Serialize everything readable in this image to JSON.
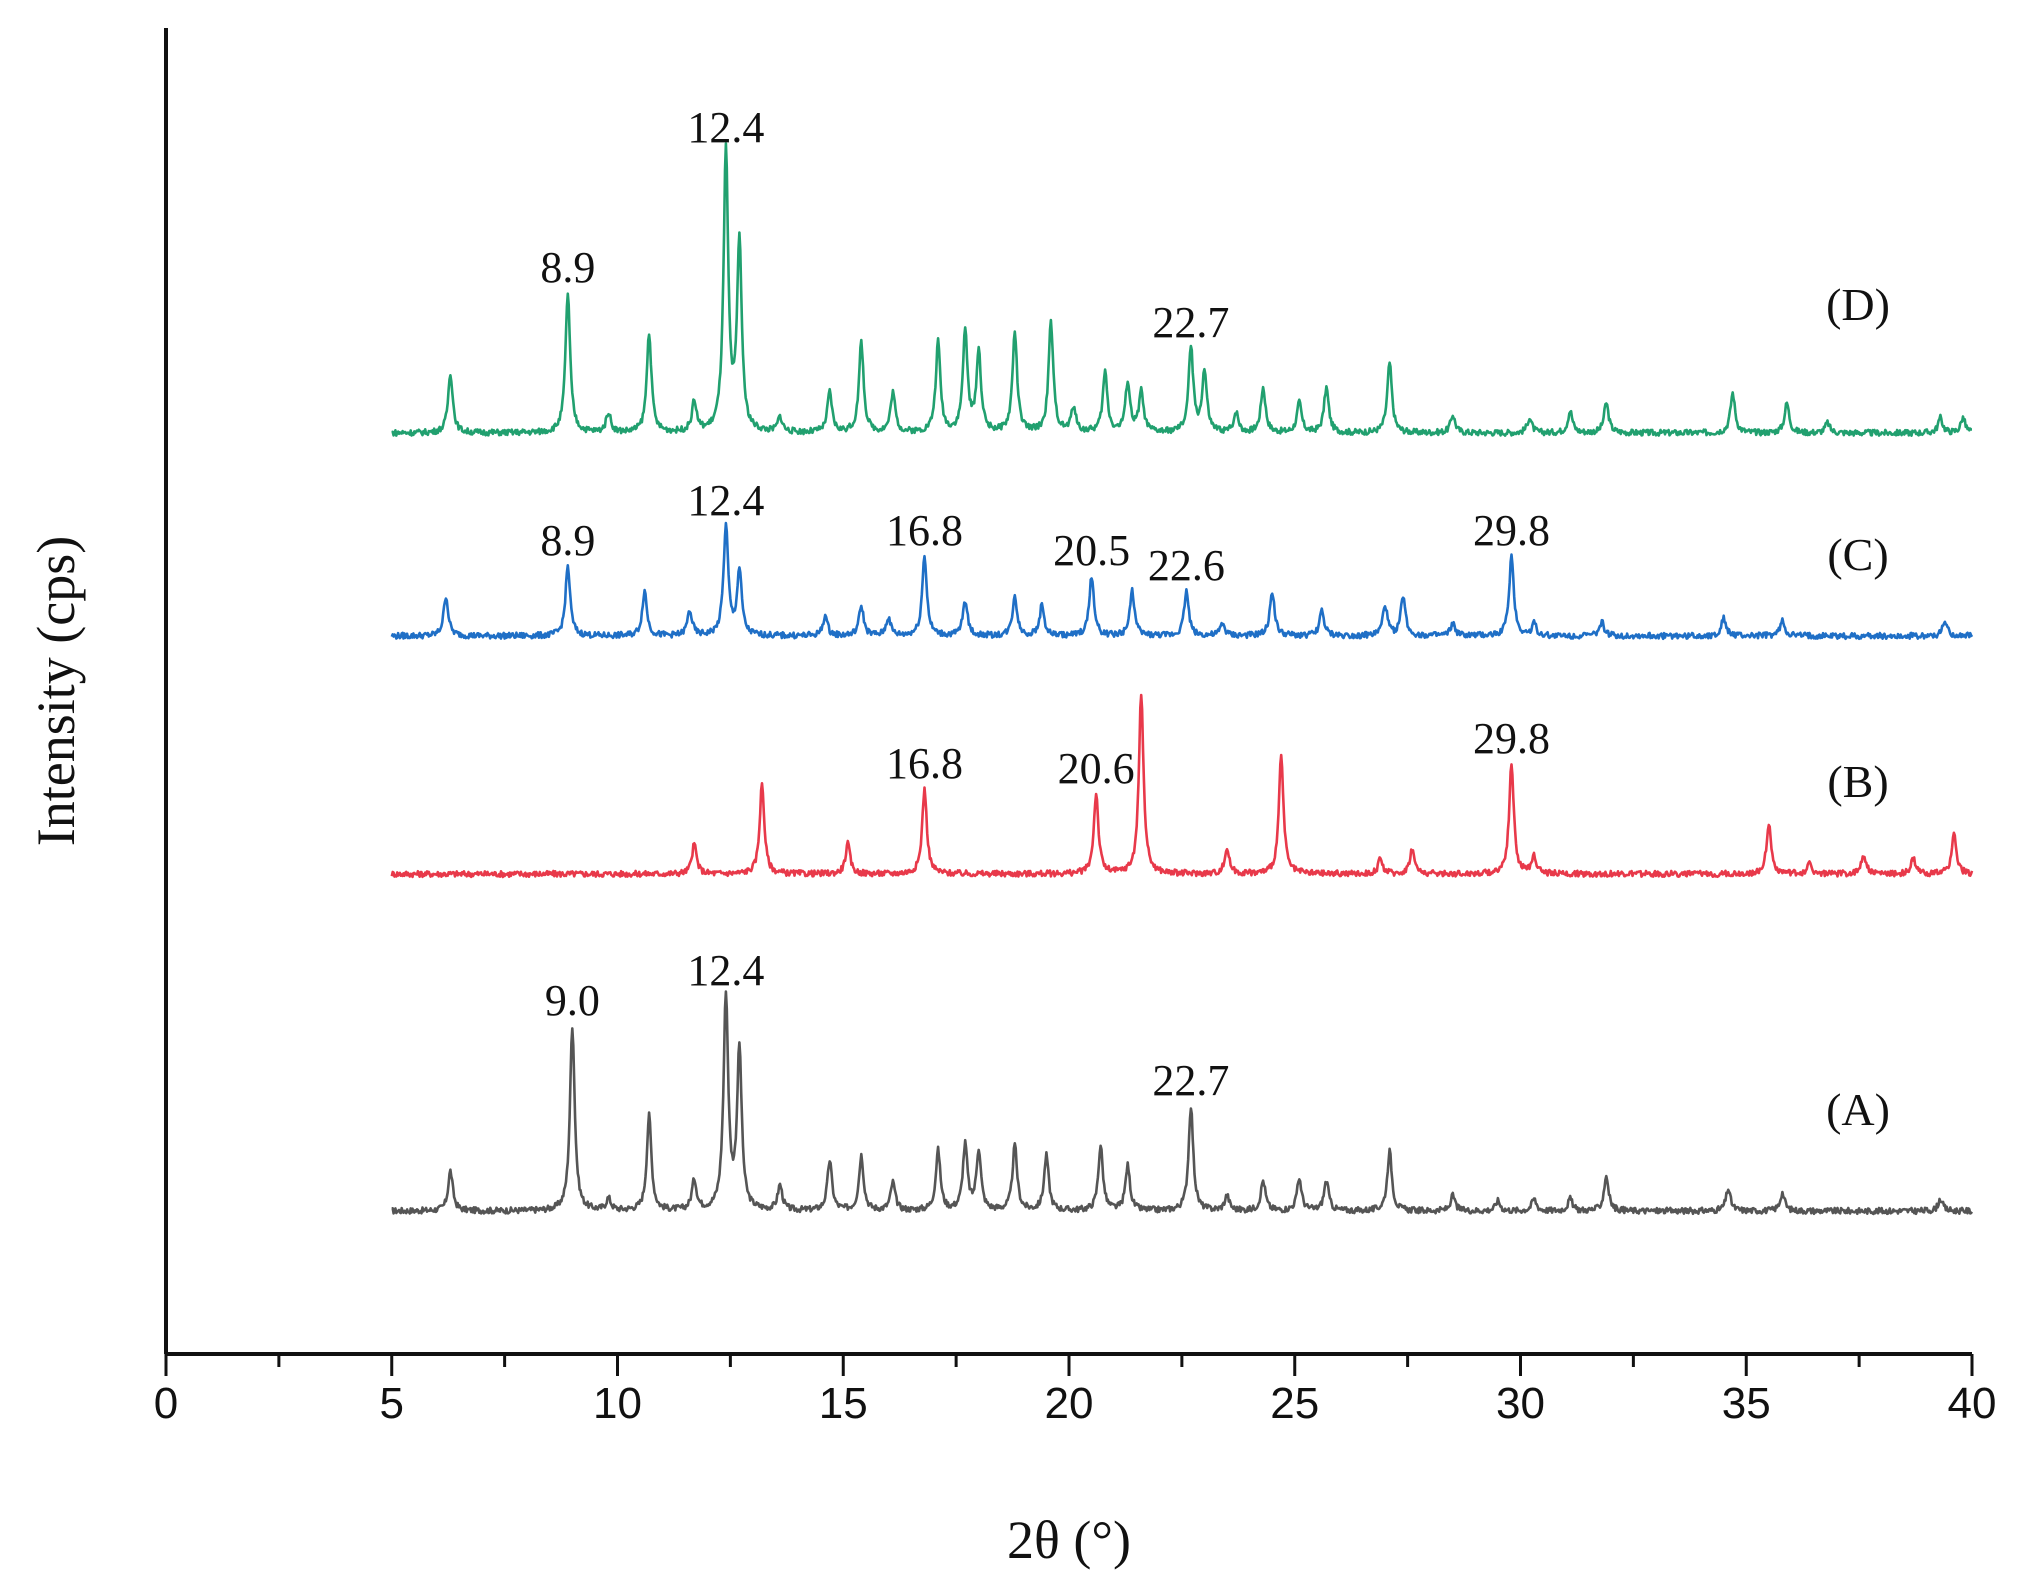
{
  "chart_data": {
    "type": "line",
    "xlabel": "2θ (°)",
    "ylabel": "Intensity (cps)",
    "xlim": [
      0,
      40
    ],
    "x_ticks": [
      "0",
      "5",
      "10",
      "15",
      "20",
      "25",
      "30",
      "35",
      "40"
    ],
    "grid": false,
    "legend": "none (series labels placed at right of each trace)",
    "colors": {
      "A": "#555555",
      "B": "#e8394a",
      "C": "#1f6fc6",
      "D": "#21a06f"
    },
    "series": [
      {
        "name": "(A)",
        "color": "#555555",
        "peaks": [
          {
            "x": 6.3,
            "h": 40
          },
          {
            "x": 9.0,
            "h": 185
          },
          {
            "x": 9.8,
            "h": 12
          },
          {
            "x": 10.7,
            "h": 95
          },
          {
            "x": 11.7,
            "h": 30
          },
          {
            "x": 12.4,
            "h": 215
          },
          {
            "x": 12.7,
            "h": 160
          },
          {
            "x": 13.6,
            "h": 25
          },
          {
            "x": 14.7,
            "h": 50
          },
          {
            "x": 15.4,
            "h": 55
          },
          {
            "x": 16.1,
            "h": 28
          },
          {
            "x": 17.1,
            "h": 60
          },
          {
            "x": 17.7,
            "h": 65
          },
          {
            "x": 18.0,
            "h": 60
          },
          {
            "x": 18.8,
            "h": 65
          },
          {
            "x": 19.5,
            "h": 55
          },
          {
            "x": 20.7,
            "h": 65
          },
          {
            "x": 21.3,
            "h": 45
          },
          {
            "x": 22.7,
            "h": 105
          },
          {
            "x": 23.5,
            "h": 15
          },
          {
            "x": 24.3,
            "h": 30
          },
          {
            "x": 25.1,
            "h": 32
          },
          {
            "x": 25.7,
            "h": 30
          },
          {
            "x": 27.1,
            "h": 60
          },
          {
            "x": 28.5,
            "h": 15
          },
          {
            "x": 29.5,
            "h": 10
          },
          {
            "x": 30.3,
            "h": 12
          },
          {
            "x": 31.1,
            "h": 12
          },
          {
            "x": 31.9,
            "h": 35
          },
          {
            "x": 34.6,
            "h": 22
          },
          {
            "x": 35.8,
            "h": 18
          },
          {
            "x": 39.3,
            "h": 12
          }
        ],
        "annotations": [
          {
            "x": 9.0,
            "label": "9.0"
          },
          {
            "x": 12.4,
            "label": "12.4"
          },
          {
            "x": 22.7,
            "label": "22.7"
          }
        ]
      },
      {
        "name": "(B)",
        "color": "#e8394a",
        "peaks": [
          {
            "x": 11.7,
            "h": 30
          },
          {
            "x": 13.2,
            "h": 90
          },
          {
            "x": 15.1,
            "h": 30
          },
          {
            "x": 16.8,
            "h": 85
          },
          {
            "x": 20.6,
            "h": 80
          },
          {
            "x": 21.6,
            "h": 180
          },
          {
            "x": 23.5,
            "h": 25
          },
          {
            "x": 24.7,
            "h": 118
          },
          {
            "x": 26.9,
            "h": 15
          },
          {
            "x": 27.6,
            "h": 25
          },
          {
            "x": 29.8,
            "h": 110
          },
          {
            "x": 30.3,
            "h": 18
          },
          {
            "x": 35.5,
            "h": 50
          },
          {
            "x": 36.4,
            "h": 10
          },
          {
            "x": 37.6,
            "h": 20
          },
          {
            "x": 38.7,
            "h": 15
          },
          {
            "x": 39.6,
            "h": 40
          }
        ],
        "annotations": [
          {
            "x": 16.8,
            "label": "16.8"
          },
          {
            "x": 20.6,
            "label": "20.6"
          },
          {
            "x": 29.8,
            "label": "29.8"
          }
        ]
      },
      {
        "name": "(C)",
        "color": "#1f6fc6",
        "peaks": [
          {
            "x": 6.2,
            "h": 40
          },
          {
            "x": 8.9,
            "h": 70
          },
          {
            "x": 10.6,
            "h": 45
          },
          {
            "x": 11.6,
            "h": 25
          },
          {
            "x": 12.4,
            "h": 110
          },
          {
            "x": 12.7,
            "h": 65
          },
          {
            "x": 14.6,
            "h": 20
          },
          {
            "x": 15.4,
            "h": 30
          },
          {
            "x": 16.0,
            "h": 18
          },
          {
            "x": 16.8,
            "h": 80
          },
          {
            "x": 17.7,
            "h": 35
          },
          {
            "x": 18.8,
            "h": 40
          },
          {
            "x": 19.4,
            "h": 30
          },
          {
            "x": 20.5,
            "h": 60
          },
          {
            "x": 21.4,
            "h": 45
          },
          {
            "x": 22.6,
            "h": 45
          },
          {
            "x": 23.4,
            "h": 12
          },
          {
            "x": 24.5,
            "h": 45
          },
          {
            "x": 25.6,
            "h": 25
          },
          {
            "x": 27.0,
            "h": 30
          },
          {
            "x": 27.4,
            "h": 40
          },
          {
            "x": 28.5,
            "h": 12
          },
          {
            "x": 29.8,
            "h": 80
          },
          {
            "x": 30.3,
            "h": 12
          },
          {
            "x": 31.8,
            "h": 14
          },
          {
            "x": 34.5,
            "h": 18
          },
          {
            "x": 35.8,
            "h": 15
          },
          {
            "x": 39.4,
            "h": 15
          }
        ],
        "annotations": [
          {
            "x": 8.9,
            "label": "8.9"
          },
          {
            "x": 12.4,
            "label": "12.4"
          },
          {
            "x": 16.8,
            "label": "16.8"
          },
          {
            "x": 20.5,
            "label": "20.5"
          },
          {
            "x": 22.6,
            "label": "22.6"
          },
          {
            "x": 29.8,
            "label": "29.8"
          }
        ]
      },
      {
        "name": "(D)",
        "color": "#21a06f",
        "peaks": [
          {
            "x": 6.3,
            "h": 60
          },
          {
            "x": 8.9,
            "h": 140
          },
          {
            "x": 9.8,
            "h": 20
          },
          {
            "x": 10.7,
            "h": 100
          },
          {
            "x": 11.7,
            "h": 30
          },
          {
            "x": 12.4,
            "h": 280
          },
          {
            "x": 12.7,
            "h": 190
          },
          {
            "x": 13.6,
            "h": 15
          },
          {
            "x": 14.7,
            "h": 40
          },
          {
            "x": 15.4,
            "h": 90
          },
          {
            "x": 16.1,
            "h": 40
          },
          {
            "x": 17.1,
            "h": 90
          },
          {
            "x": 17.7,
            "h": 100
          },
          {
            "x": 18.0,
            "h": 80
          },
          {
            "x": 18.8,
            "h": 100
          },
          {
            "x": 19.6,
            "h": 110
          },
          {
            "x": 20.1,
            "h": 25
          },
          {
            "x": 20.8,
            "h": 60
          },
          {
            "x": 21.3,
            "h": 50
          },
          {
            "x": 21.6,
            "h": 40
          },
          {
            "x": 22.7,
            "h": 85
          },
          {
            "x": 23.0,
            "h": 60
          },
          {
            "x": 23.7,
            "h": 20
          },
          {
            "x": 24.3,
            "h": 45
          },
          {
            "x": 25.1,
            "h": 30
          },
          {
            "x": 25.7,
            "h": 45
          },
          {
            "x": 27.1,
            "h": 70
          },
          {
            "x": 28.5,
            "h": 18
          },
          {
            "x": 30.2,
            "h": 15
          },
          {
            "x": 31.1,
            "h": 22
          },
          {
            "x": 31.9,
            "h": 30
          },
          {
            "x": 34.7,
            "h": 40
          },
          {
            "x": 35.9,
            "h": 30
          },
          {
            "x": 36.8,
            "h": 10
          },
          {
            "x": 39.3,
            "h": 15
          },
          {
            "x": 39.8,
            "h": 15
          }
        ],
        "annotations": [
          {
            "x": 8.9,
            "label": "8.9"
          },
          {
            "x": 12.4,
            "label": "12.4"
          },
          {
            "x": 22.7,
            "label": "22.7"
          }
        ]
      }
    ]
  }
}
